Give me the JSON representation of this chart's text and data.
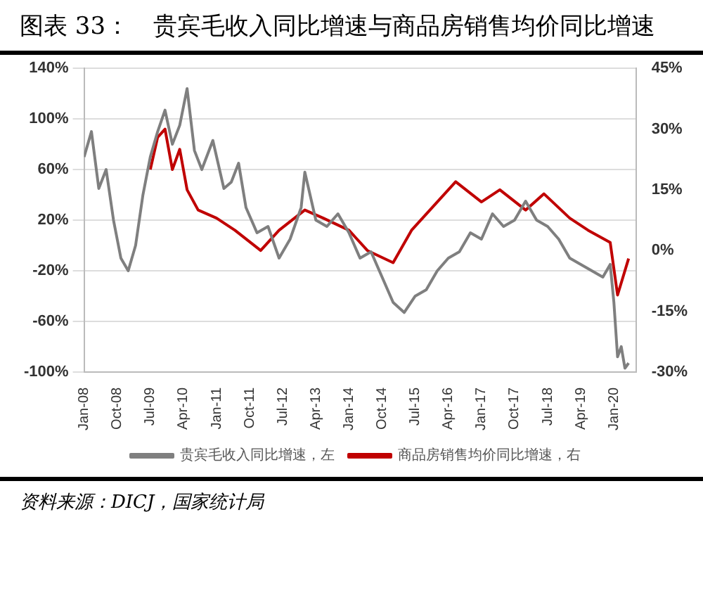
{
  "chart_data": {
    "type": "line",
    "title": "图表 33：　贵宾毛收入同比增速与商品房销售均价同比增速",
    "annotations": [
      "资料来源：DICJ，国家统计局"
    ],
    "xlim": [
      "2008-01",
      "2020-07"
    ],
    "xticks": [
      {
        "value": "2008-01",
        "label": "Jan-08"
      },
      {
        "value": "2008-10",
        "label": "Oct-08"
      },
      {
        "value": "2009-07",
        "label": "Jul-09"
      },
      {
        "value": "2010-04",
        "label": "Apr-10"
      },
      {
        "value": "2011-01",
        "label": "Jan-11"
      },
      {
        "value": "2011-10",
        "label": "Oct-11"
      },
      {
        "value": "2012-07",
        "label": "Jul-12"
      },
      {
        "value": "2013-04",
        "label": "Apr-13"
      },
      {
        "value": "2014-01",
        "label": "Jan-14"
      },
      {
        "value": "2014-10",
        "label": "Oct-14"
      },
      {
        "value": "2015-07",
        "label": "Jul-15"
      },
      {
        "value": "2016-04",
        "label": "Apr-16"
      },
      {
        "value": "2017-01",
        "label": "Jan-17"
      },
      {
        "value": "2017-10",
        "label": "Oct-17"
      },
      {
        "value": "2018-07",
        "label": "Jul-18"
      },
      {
        "value": "2019-04",
        "label": "Apr-19"
      },
      {
        "value": "2020-01",
        "label": "Jan-20"
      }
    ],
    "ylim": [
      -100,
      140
    ],
    "yticks": [
      {
        "value": -100,
        "label": "-100%"
      },
      {
        "value": -60,
        "label": "-60%"
      },
      {
        "value": -20,
        "label": "-20%"
      },
      {
        "value": 20,
        "label": "20%"
      },
      {
        "value": 60,
        "label": "60%"
      },
      {
        "value": 100,
        "label": "100%"
      },
      {
        "value": 140,
        "label": "140%"
      }
    ],
    "y2lim": [
      -30,
      45
    ],
    "y2ticks": [
      {
        "value": -30,
        "label": "-30%"
      },
      {
        "value": -15,
        "label": "-15%"
      },
      {
        "value": 0,
        "label": "0%"
      },
      {
        "value": 15,
        "label": "15%"
      },
      {
        "value": 30,
        "label": "30%"
      },
      {
        "value": 45,
        "label": "45%"
      }
    ],
    "grid": "y",
    "legend": "bottom",
    "marker": "none",
    "line_style": "solid",
    "series": [
      {
        "name": "贵宾毛收入同比增速，左",
        "color": "#7f7f7f",
        "x": [
          "2008-01",
          "2008-03",
          "2008-05",
          "2008-07",
          "2008-09",
          "2008-11",
          "2009-01",
          "2009-03",
          "2009-05",
          "2009-07",
          "2009-09",
          "2009-11",
          "2010-01",
          "2010-03",
          "2010-05",
          "2010-07",
          "2010-09",
          "2010-12",
          "2011-03",
          "2011-05",
          "2011-07",
          "2011-09",
          "2011-12",
          "2012-03",
          "2012-06",
          "2012-09",
          "2012-12",
          "2013-01",
          "2013-04",
          "2013-07",
          "2013-10",
          "2014-01",
          "2014-04",
          "2014-07",
          "2014-10",
          "2015-01",
          "2015-04",
          "2015-07",
          "2015-10",
          "2016-01",
          "2016-04",
          "2016-07",
          "2016-10",
          "2017-01",
          "2017-04",
          "2017-07",
          "2017-10",
          "2018-01",
          "2018-04",
          "2018-07",
          "2018-10",
          "2019-01",
          "2019-04",
          "2019-07",
          "2019-10",
          "2019-12",
          "2020-01",
          "2020-02",
          "2020-03",
          "2020-04",
          "2020-05"
        ],
        "values": [
          70,
          90,
          45,
          60,
          20,
          -10,
          -20,
          0,
          40,
          70,
          90,
          107,
          80,
          95,
          124,
          75,
          60,
          83,
          45,
          50,
          65,
          30,
          10,
          15,
          -10,
          5,
          30,
          58,
          20,
          15,
          25,
          10,
          -10,
          -5,
          -25,
          -45,
          -53,
          -40,
          -35,
          -20,
          -10,
          -5,
          10,
          5,
          25,
          15,
          20,
          35,
          20,
          15,
          5,
          -10,
          -15,
          -20,
          -25,
          -15,
          -45,
          -88,
          -80,
          -97,
          -93
        ]
      },
      {
        "name": "商品房销售均价同比增速，右",
        "color": "#c00000",
        "axis": "y2",
        "x": [
          "2009-07",
          "2009-09",
          "2009-11",
          "2010-01",
          "2010-03",
          "2010-05",
          "2010-08",
          "2011-01",
          "2011-06",
          "2012-01",
          "2012-06",
          "2013-01",
          "2013-06",
          "2014-01",
          "2014-06",
          "2015-01",
          "2015-06",
          "2016-01",
          "2016-06",
          "2017-01",
          "2017-06",
          "2018-01",
          "2018-06",
          "2019-01",
          "2019-06",
          "2019-12",
          "2020-02",
          "2020-05"
        ],
        "values": [
          20,
          28,
          30,
          20,
          25,
          15,
          10,
          8,
          5,
          0,
          5,
          10,
          8,
          5,
          0,
          -3,
          5,
          12,
          17,
          12,
          15,
          10,
          14,
          8,
          5,
          2,
          -11,
          -2
        ]
      }
    ]
  }
}
